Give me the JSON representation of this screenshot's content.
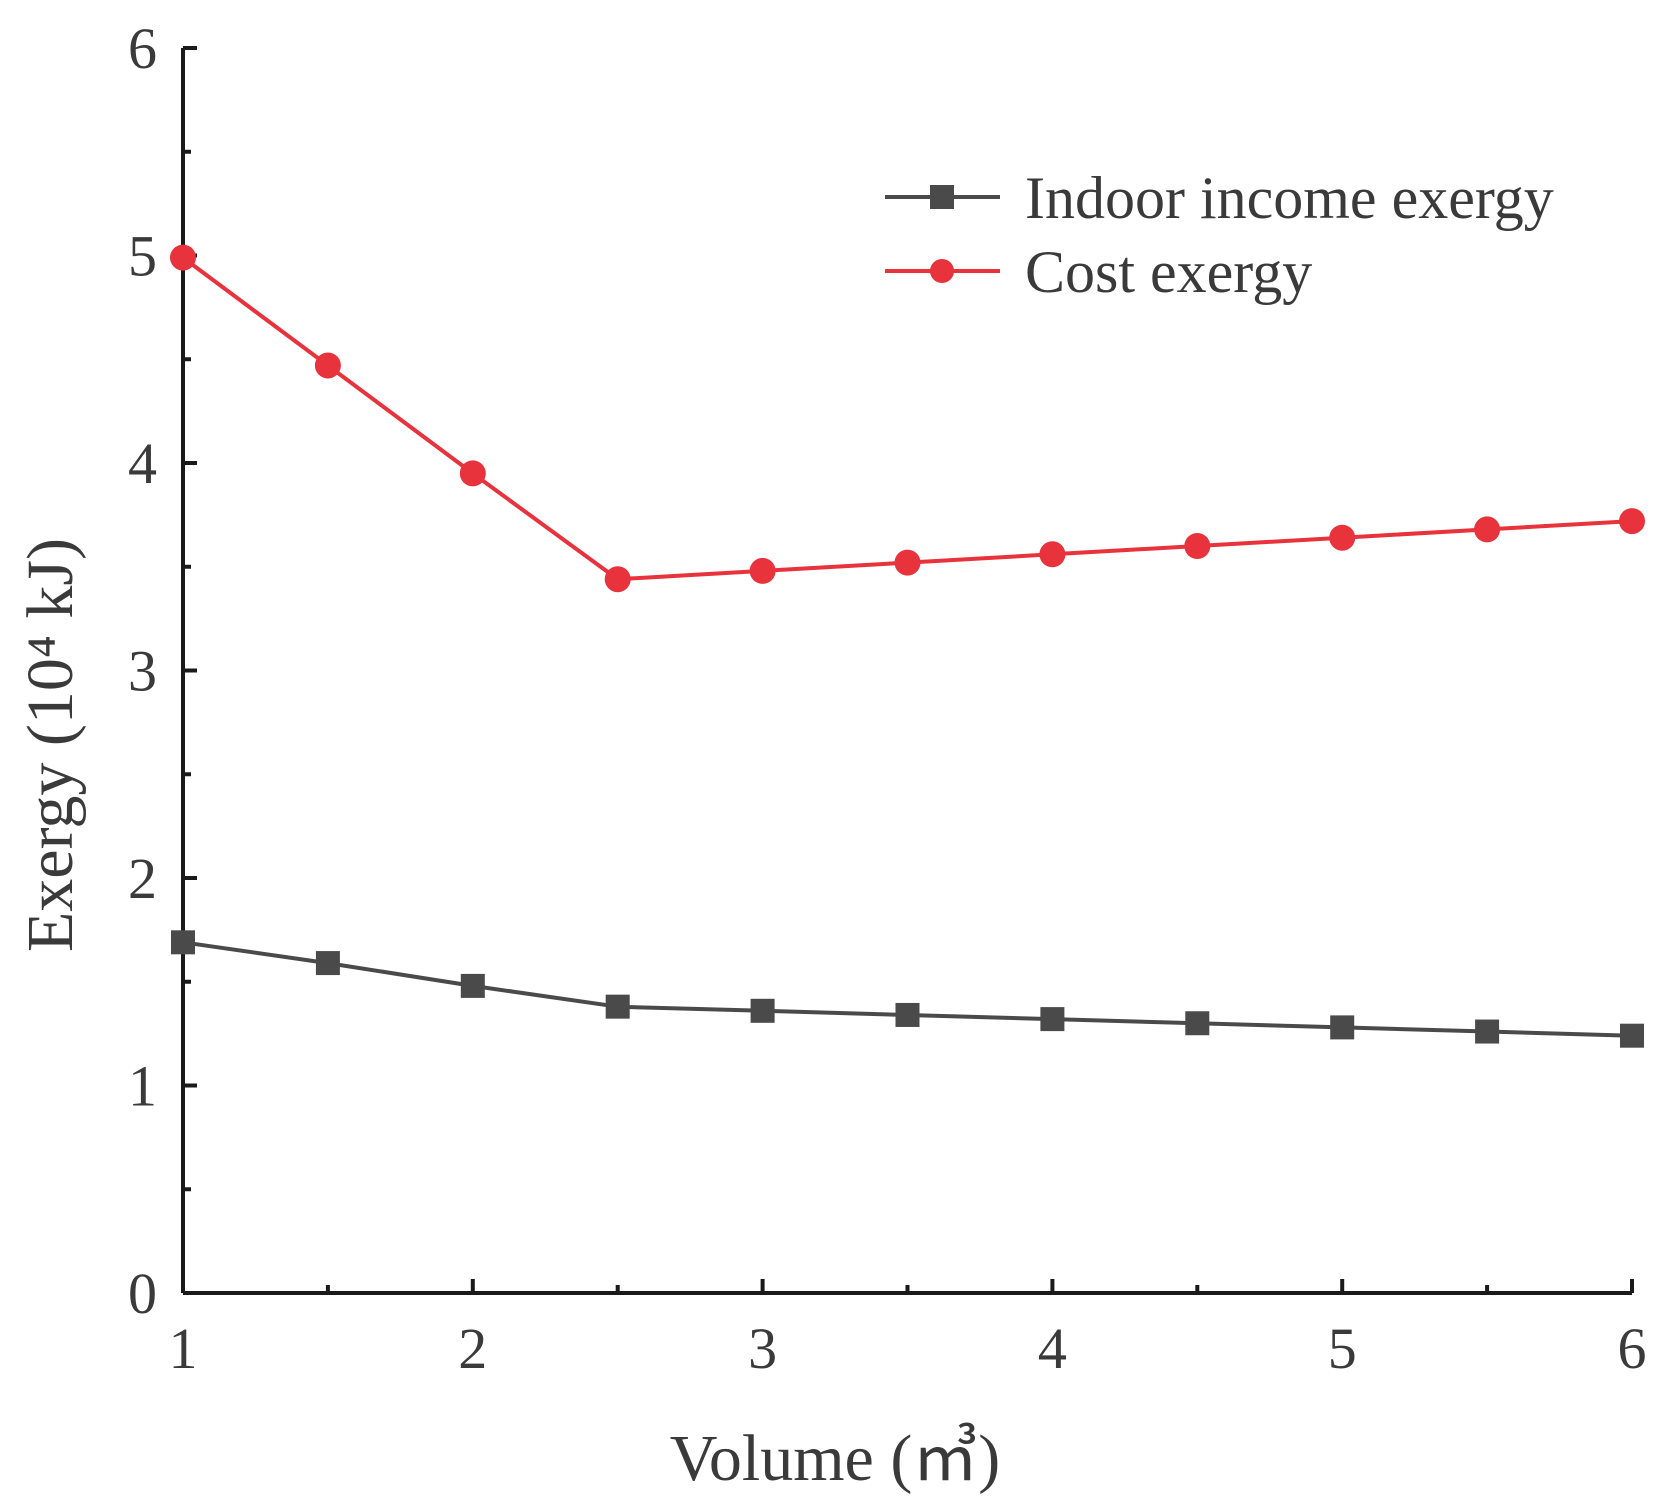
{
  "chart_data": {
    "type": "line",
    "title": "",
    "xlabel": "Volume",
    "xlabel_unit": "(㎥)",
    "ylabel": "Exergy",
    "ylabel_unit": "(10⁴ kJ)",
    "xlim": [
      1,
      6
    ],
    "ylim": [
      0,
      6
    ],
    "x_ticks": [
      "1",
      "2",
      "3",
      "4",
      "5",
      "6"
    ],
    "y_ticks": [
      "0",
      "1",
      "2",
      "3",
      "4",
      "5",
      "6"
    ],
    "grid": false,
    "legend_position": "top-right",
    "x": [
      1,
      1.5,
      2,
      2.5,
      3,
      3.5,
      4,
      4.5,
      5,
      5.5,
      6
    ],
    "series": [
      {
        "name": "Indoor income exergy",
        "color": "#4a4a4a",
        "marker": "square",
        "values": [
          1.69,
          1.59,
          1.48,
          1.38,
          1.36,
          1.34,
          1.32,
          1.3,
          1.28,
          1.26,
          1.24
        ]
      },
      {
        "name": "Cost exergy",
        "color": "#e8323c",
        "marker": "circle",
        "values": [
          4.99,
          4.47,
          3.95,
          3.44,
          3.48,
          3.52,
          3.56,
          3.6,
          3.64,
          3.68,
          3.72
        ]
      }
    ]
  }
}
